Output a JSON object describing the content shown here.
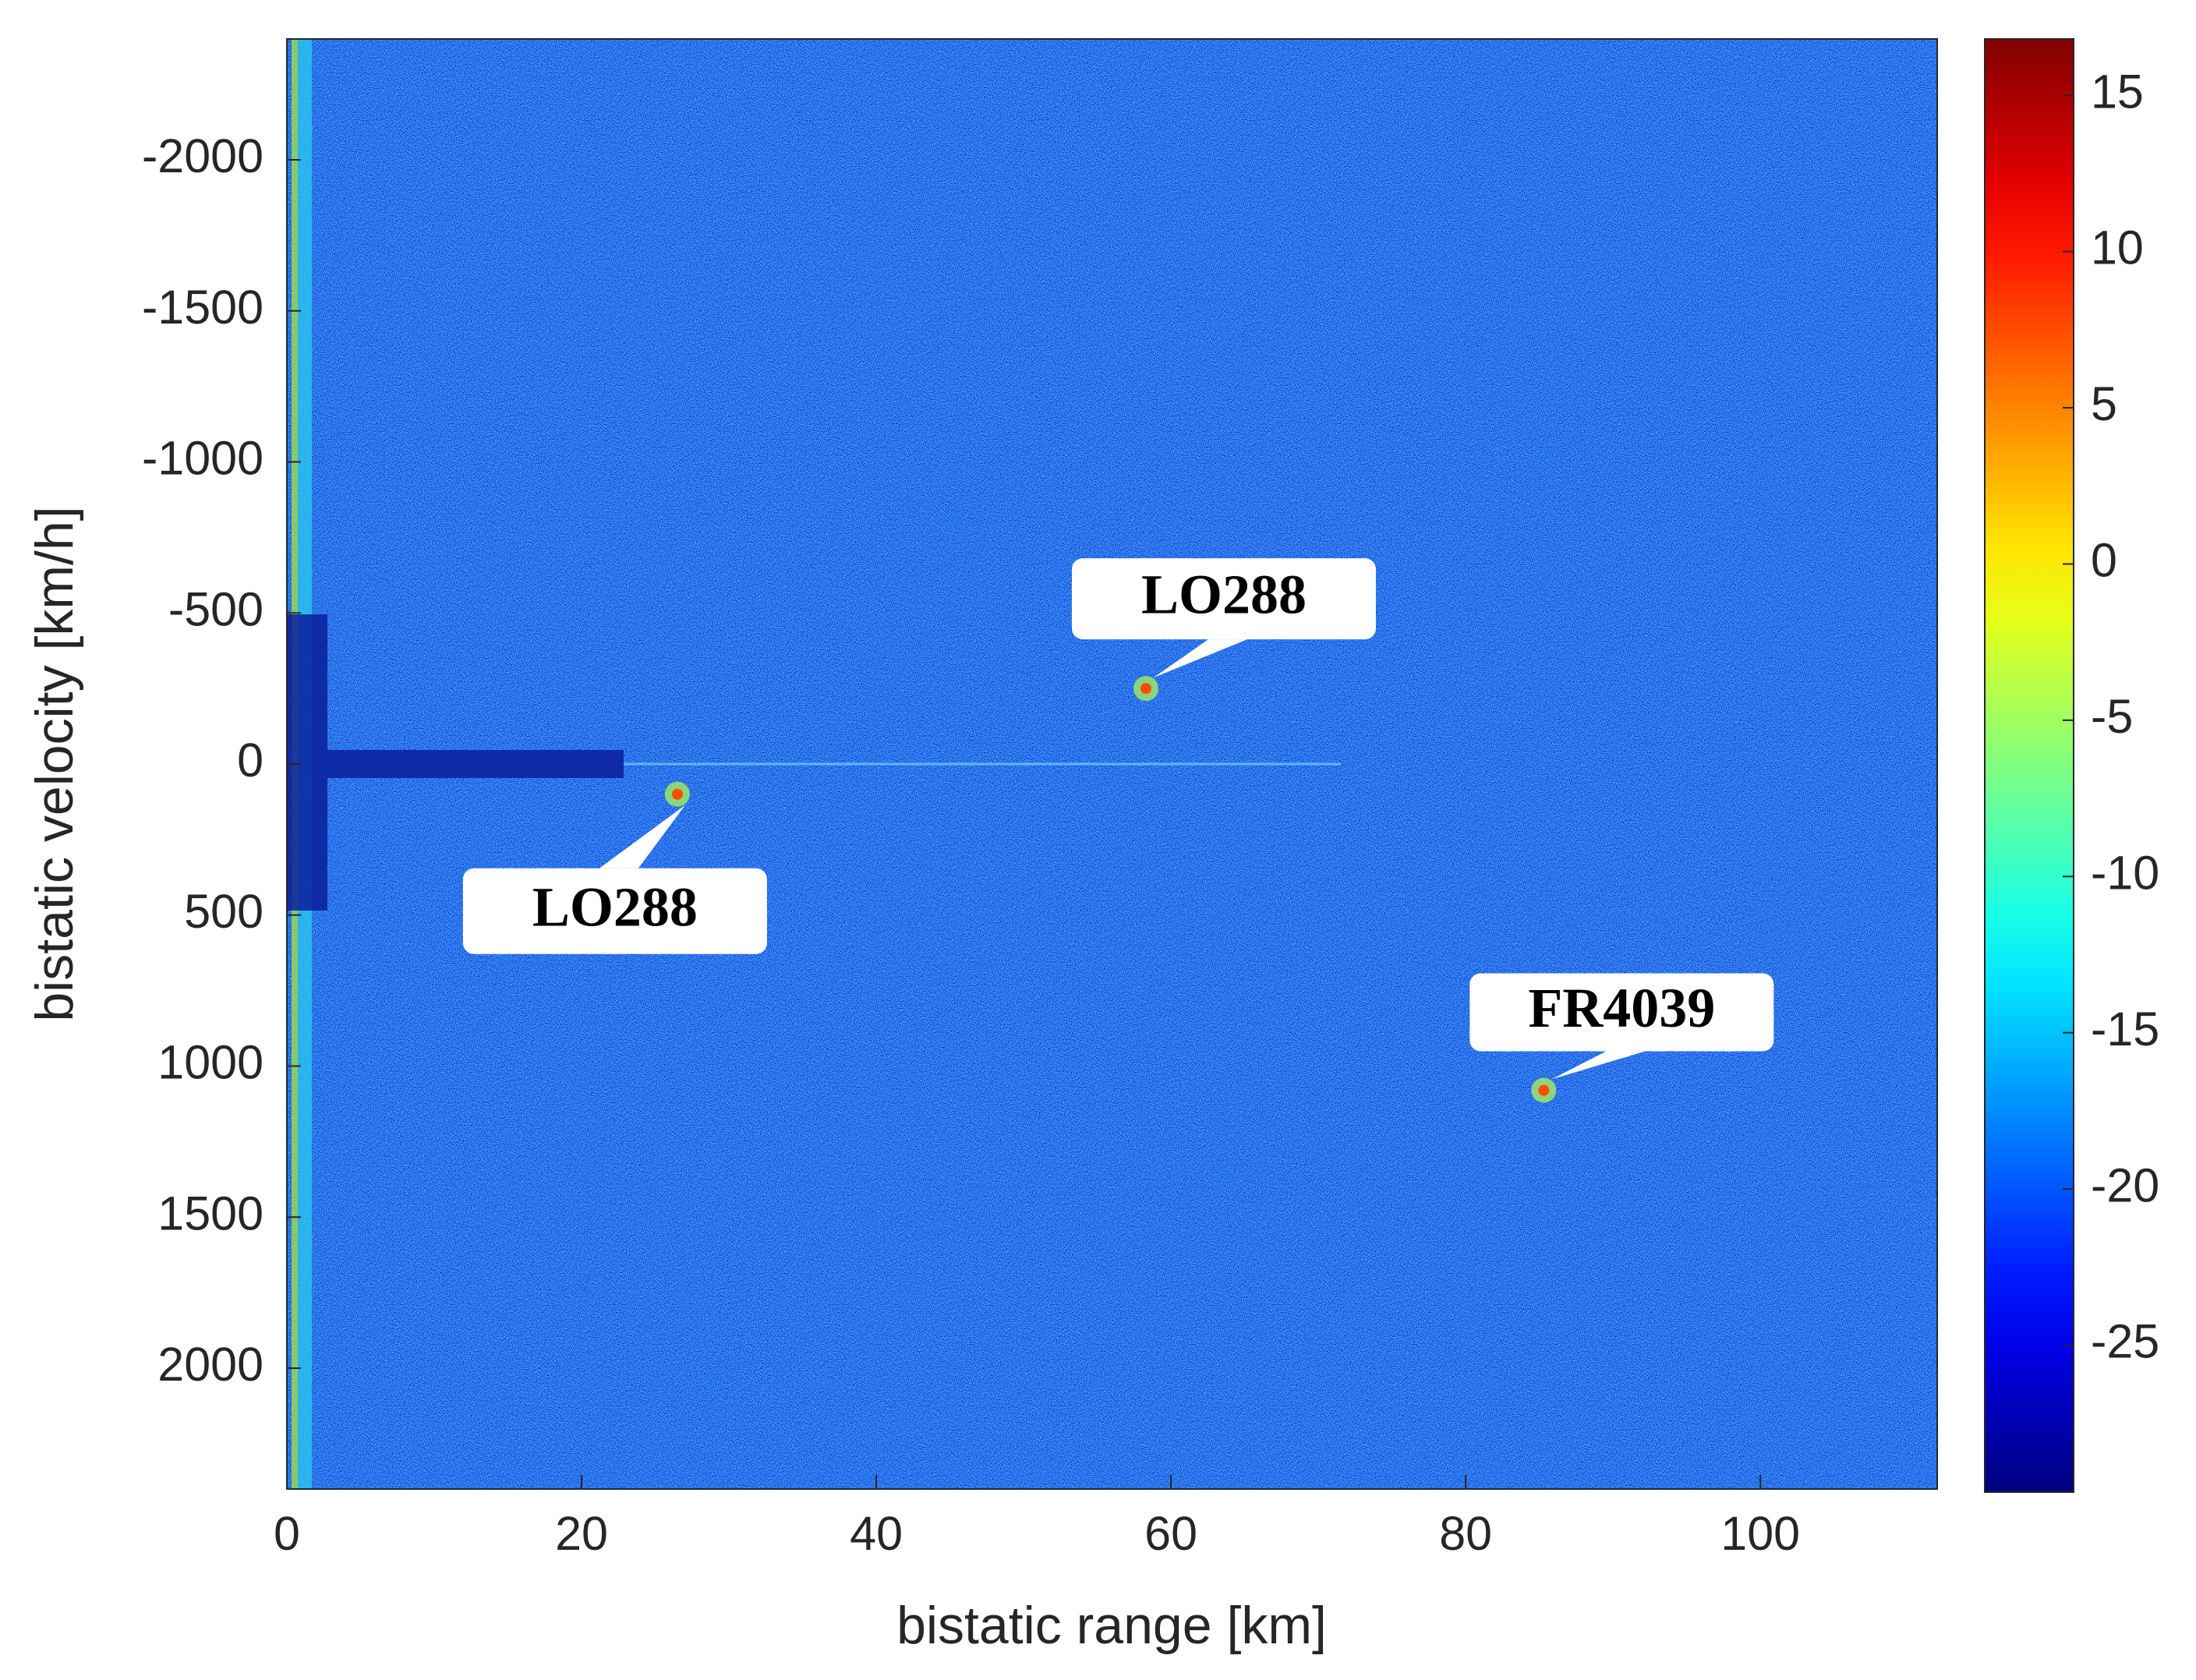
{
  "chart_data": {
    "type": "heatmap",
    "xlabel": "bistatic range [km]",
    "ylabel": "bistatic velocity [km/h]",
    "xlim": [
      0,
      112
    ],
    "xticks": [
      0,
      20,
      40,
      60,
      80,
      100
    ],
    "ylim": [
      -2400,
      2400
    ],
    "y_reversed": true,
    "yticks": [
      -2000,
      -1500,
      -1000,
      -500,
      0,
      500,
      1000,
      1500,
      2000
    ],
    "colormap": "jet",
    "clim": [
      -29.7,
      16.8
    ],
    "cticks": [
      -25,
      -20,
      -15,
      -10,
      -5,
      0,
      5,
      10,
      15
    ],
    "annotations": [
      {
        "text": "LO288",
        "x": 58.3,
        "y": -250
      },
      {
        "text": "LO288",
        "x": 26.5,
        "y": 100
      },
      {
        "text": "FR4039",
        "x": 85.3,
        "y": 1080
      }
    ]
  }
}
